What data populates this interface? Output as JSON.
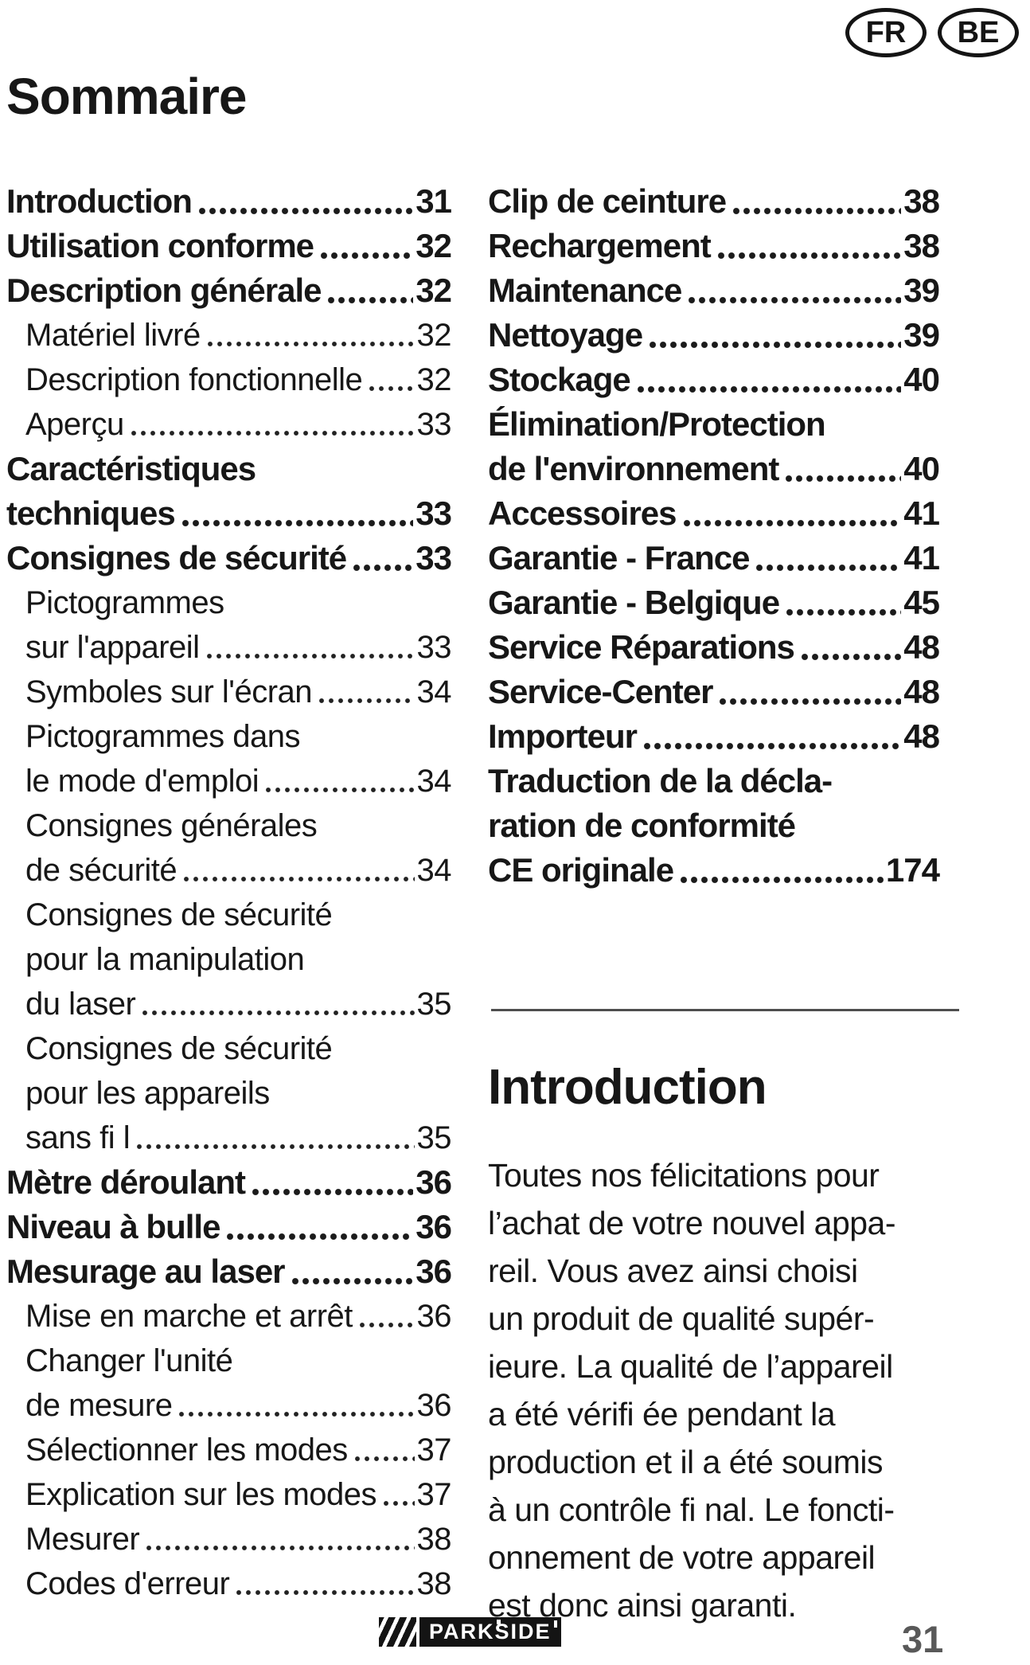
{
  "badges": [
    "FR",
    "BE"
  ],
  "title": "Sommaire",
  "page_number": "31",
  "brand": {
    "name": "PARKSIDE"
  },
  "colors": {
    "text": "#171717",
    "page_number": "#595959"
  },
  "toc_left": [
    {
      "label": "Introduction",
      "num": "31",
      "style": "bold",
      "indent": false
    },
    {
      "label": "Utilisation conforme",
      "num": "32",
      "style": "bold",
      "indent": false
    },
    {
      "label": "Description générale",
      "num": "32",
      "style": "bold",
      "indent": false
    },
    {
      "label": "Matériel livré",
      "num": "32",
      "style": "plain",
      "indent": true
    },
    {
      "label": "Description fonctionnelle",
      "num": "32",
      "style": "plain",
      "indent": true
    },
    {
      "label": "Aperçu",
      "num": "33",
      "style": "plain",
      "indent": true
    },
    {
      "label": "Caractéristiques",
      "num": "",
      "style": "bold",
      "indent": false
    },
    {
      "label": "techniques",
      "num": "33",
      "style": "bold",
      "indent": false
    },
    {
      "label": "Consignes de sécurité",
      "num": "33",
      "style": "bold",
      "indent": false
    },
    {
      "label": "Pictogrammes",
      "num": "",
      "style": "plain",
      "indent": true
    },
    {
      "label": "sur l'appareil",
      "num": "33",
      "style": "plain",
      "indent": true
    },
    {
      "label": "Symboles sur l'écran",
      "num": "34",
      "style": "plain",
      "indent": true
    },
    {
      "label": "Pictogrammes dans",
      "num": "",
      "style": "plain",
      "indent": true
    },
    {
      "label": "le mode d'emploi",
      "num": "34",
      "style": "plain",
      "indent": true
    },
    {
      "label": "Consignes générales",
      "num": "",
      "style": "plain",
      "indent": true
    },
    {
      "label": "de sécurité",
      "num": "34",
      "style": "plain",
      "indent": true
    },
    {
      "label": "Consignes de sécurité",
      "num": "",
      "style": "plain",
      "indent": true
    },
    {
      "label": "pour la manipulation",
      "num": "",
      "style": "plain",
      "indent": true
    },
    {
      "label": "du laser",
      "num": "35",
      "style": "plain",
      "indent": true
    },
    {
      "label": "Consignes de sécurité",
      "num": "",
      "style": "plain",
      "indent": true
    },
    {
      "label": "pour les appareils",
      "num": "",
      "style": "plain",
      "indent": true
    },
    {
      "label": "sans fi l",
      "num": "35",
      "style": "plain",
      "indent": true
    },
    {
      "label": "Mètre déroulant",
      "num": "36",
      "style": "bold",
      "indent": false
    },
    {
      "label": "Niveau à bulle",
      "num": "36",
      "style": "bold",
      "indent": false
    },
    {
      "label": "Mesurage au laser",
      "num": "36",
      "style": "bold",
      "indent": false
    },
    {
      "label": "Mise en marche et arrêt",
      "num": "36",
      "style": "plain",
      "indent": true
    },
    {
      "label": "Changer l'unité",
      "num": "",
      "style": "plain",
      "indent": true
    },
    {
      "label": "de mesure",
      "num": "36",
      "style": "plain",
      "indent": true
    },
    {
      "label": "Sélectionner les modes",
      "num": "37",
      "style": "plain",
      "indent": true
    },
    {
      "label": "Explication sur les modes",
      "num": "37",
      "style": "plain",
      "indent": true
    },
    {
      "label": "Mesurer",
      "num": "38",
      "style": "plain",
      "indent": true
    },
    {
      "label": "Codes d'erreur",
      "num": "38",
      "style": "plain",
      "indent": true
    }
  ],
  "toc_right": [
    {
      "label": "Clip de ceinture",
      "num": "38",
      "style": "bold",
      "indent": false
    },
    {
      "label": "Rechargement",
      "num": "38",
      "style": "bold",
      "indent": false
    },
    {
      "label": "Maintenance",
      "num": "39",
      "style": "bold",
      "indent": false
    },
    {
      "label": "Nettoyage",
      "num": "39",
      "style": "bold",
      "indent": false
    },
    {
      "label": "Stockage",
      "num": "40",
      "style": "bold",
      "indent": false
    },
    {
      "label": "Élimination/Protection",
      "num": "",
      "style": "bold",
      "indent": false
    },
    {
      "label": "de l'environnement",
      "num": "40",
      "style": "bold",
      "indent": false
    },
    {
      "label": "Accessoires",
      "num": "41",
      "style": "bold",
      "indent": false
    },
    {
      "label": "Garantie - France",
      "num": "41",
      "style": "bold",
      "indent": false
    },
    {
      "label": "Garantie - Belgique",
      "num": "45",
      "style": "bold",
      "indent": false
    },
    {
      "label": "Service Réparations",
      "num": "48",
      "style": "bold",
      "indent": false
    },
    {
      "label": "Service-Center",
      "num": "48",
      "style": "bold",
      "indent": false
    },
    {
      "label": "Importeur",
      "num": "48",
      "style": "bold",
      "indent": false
    },
    {
      "label": "Traduction de la décla-",
      "num": "",
      "style": "bold",
      "indent": false
    },
    {
      "label": "ration de conformité",
      "num": "",
      "style": "bold",
      "indent": false
    },
    {
      "label": "CE originale",
      "num": "174",
      "style": "bold",
      "indent": false
    }
  ],
  "introduction": {
    "heading": "Introduction",
    "paragraph_lines": [
      "Toutes nos félicitations pour",
      "l’achat de votre nouvel appa-",
      "reil. Vous avez ainsi choisi",
      "un produit de qualité supér-",
      "ieure. La qualité de l’appareil",
      "a été vérifi ée pendant la",
      "production et il a été soumis",
      "à un contrôle fi nal. Le foncti-",
      "onnement de votre appareil",
      "est donc ainsi garanti."
    ]
  }
}
